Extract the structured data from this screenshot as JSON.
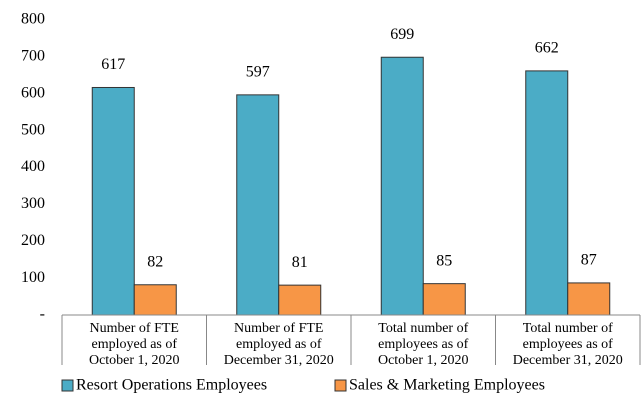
{
  "chart_data": {
    "type": "bar",
    "categories": [
      [
        "Number of FTE",
        "employed as of",
        "October 1, 2020"
      ],
      [
        "Number of FTE",
        "employed as of",
        "December 31, 2020"
      ],
      [
        "Total number of",
        "employees as of",
        "October 1, 2020"
      ],
      [
        "Total number of",
        "employees as of",
        "December 31, 2020"
      ]
    ],
    "series": [
      {
        "name": "Resort Operations Employees",
        "color": "#4bacc6",
        "values": [
          617,
          597,
          699,
          662
        ]
      },
      {
        "name": "Sales & Marketing Employees",
        "color": "#f79646",
        "values": [
          82,
          81,
          85,
          87
        ]
      }
    ],
    "ylim": [
      0,
      800
    ],
    "yticks": [
      {
        "value": 0,
        "label": "-"
      },
      100,
      200,
      300,
      400,
      500,
      600,
      700,
      800
    ],
    "grid": false,
    "legend": "bottom"
  }
}
